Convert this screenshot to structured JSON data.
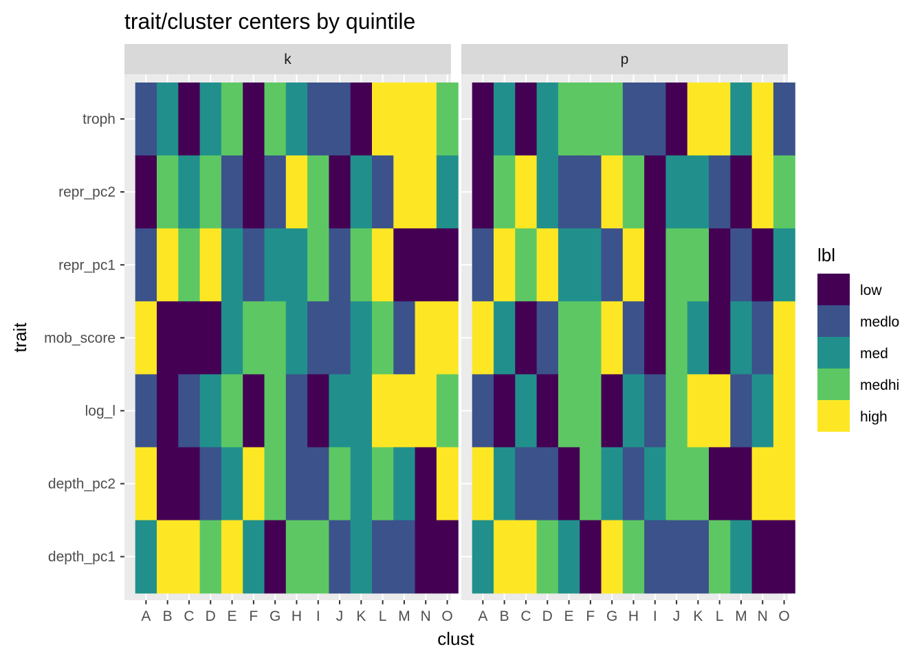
{
  "chart_data": {
    "type": "heatmap",
    "title": "trait/cluster centers by quintile",
    "xlabel": "clust",
    "ylabel": "trait",
    "categories_x": [
      "A",
      "B",
      "C",
      "D",
      "E",
      "F",
      "G",
      "H",
      "I",
      "J",
      "K",
      "L",
      "M",
      "N",
      "O"
    ],
    "categories_y": [
      "troph",
      "repr_pc2",
      "repr_pc1",
      "mob_score",
      "log_l",
      "depth_pc2",
      "depth_pc1"
    ],
    "legend": {
      "title": "lbl",
      "position": "right",
      "levels": [
        {
          "label": "low",
          "color": "#440154"
        },
        {
          "label": "medlo",
          "color": "#3B528B"
        },
        {
          "label": "med",
          "color": "#21908C"
        },
        {
          "label": "medhi",
          "color": "#5DC863"
        },
        {
          "label": "high",
          "color": "#FDE725"
        }
      ]
    },
    "panels": [
      {
        "facet": "k",
        "values": {
          "troph": [
            "medlo",
            "med",
            "low",
            "med",
            "medhi",
            "low",
            "medhi",
            "med",
            "medlo",
            "medlo",
            "low",
            "high",
            "high",
            "high",
            "medhi"
          ],
          "repr_pc2": [
            "low",
            "medhi",
            "med",
            "medhi",
            "medlo",
            "low",
            "medlo",
            "high",
            "medhi",
            "low",
            "med",
            "medlo",
            "high",
            "high",
            "med"
          ],
          "repr_pc1": [
            "medlo",
            "high",
            "medhi",
            "high",
            "med",
            "medlo",
            "med",
            "med",
            "medhi",
            "medlo",
            "medhi",
            "high",
            "low",
            "low",
            "low"
          ],
          "mob_score": [
            "high",
            "low",
            "low",
            "low",
            "med",
            "medhi",
            "medhi",
            "med",
            "medlo",
            "medlo",
            "med",
            "medhi",
            "medlo",
            "high",
            "high"
          ],
          "log_l": [
            "medlo",
            "low",
            "medlo",
            "med",
            "medhi",
            "low",
            "medhi",
            "medlo",
            "low",
            "med",
            "med",
            "high",
            "high",
            "high",
            "medhi"
          ],
          "depth_pc2": [
            "high",
            "low",
            "low",
            "medlo",
            "med",
            "high",
            "medhi",
            "medlo",
            "medlo",
            "medhi",
            "med",
            "medhi",
            "med",
            "low",
            "high"
          ],
          "depth_pc1": [
            "med",
            "high",
            "high",
            "medhi",
            "high",
            "med",
            "low",
            "medhi",
            "medhi",
            "medlo",
            "med",
            "medlo",
            "medlo",
            "low",
            "low"
          ]
        }
      },
      {
        "facet": "p",
        "values": {
          "troph": [
            "low",
            "med",
            "low",
            "med",
            "medhi",
            "medhi",
            "medhi",
            "medlo",
            "medlo",
            "low",
            "high",
            "high",
            "med",
            "high",
            "medlo"
          ],
          "repr_pc2": [
            "low",
            "medhi",
            "high",
            "med",
            "medlo",
            "medlo",
            "high",
            "medhi",
            "low",
            "med",
            "med",
            "medlo",
            "low",
            "high",
            "medhi"
          ],
          "repr_pc1": [
            "medlo",
            "high",
            "medhi",
            "high",
            "med",
            "med",
            "medlo",
            "high",
            "low",
            "medhi",
            "medhi",
            "low",
            "medlo",
            "low",
            "med"
          ],
          "mob_score": [
            "high",
            "med",
            "low",
            "medlo",
            "medhi",
            "medhi",
            "high",
            "medlo",
            "low",
            "medhi",
            "med",
            "low",
            "med",
            "medlo",
            "high"
          ],
          "log_l": [
            "medlo",
            "low",
            "med",
            "low",
            "medhi",
            "medhi",
            "low",
            "med",
            "medlo",
            "medhi",
            "high",
            "high",
            "medlo",
            "med",
            "high"
          ],
          "depth_pc2": [
            "high",
            "med",
            "medlo",
            "medlo",
            "low",
            "medhi",
            "med",
            "medlo",
            "med",
            "medhi",
            "medhi",
            "low",
            "low",
            "high",
            "high"
          ],
          "depth_pc1": [
            "med",
            "high",
            "high",
            "medhi",
            "med",
            "low",
            "high",
            "medhi",
            "medlo",
            "medlo",
            "medlo",
            "medhi",
            "med",
            "low",
            "low"
          ]
        }
      }
    ]
  }
}
